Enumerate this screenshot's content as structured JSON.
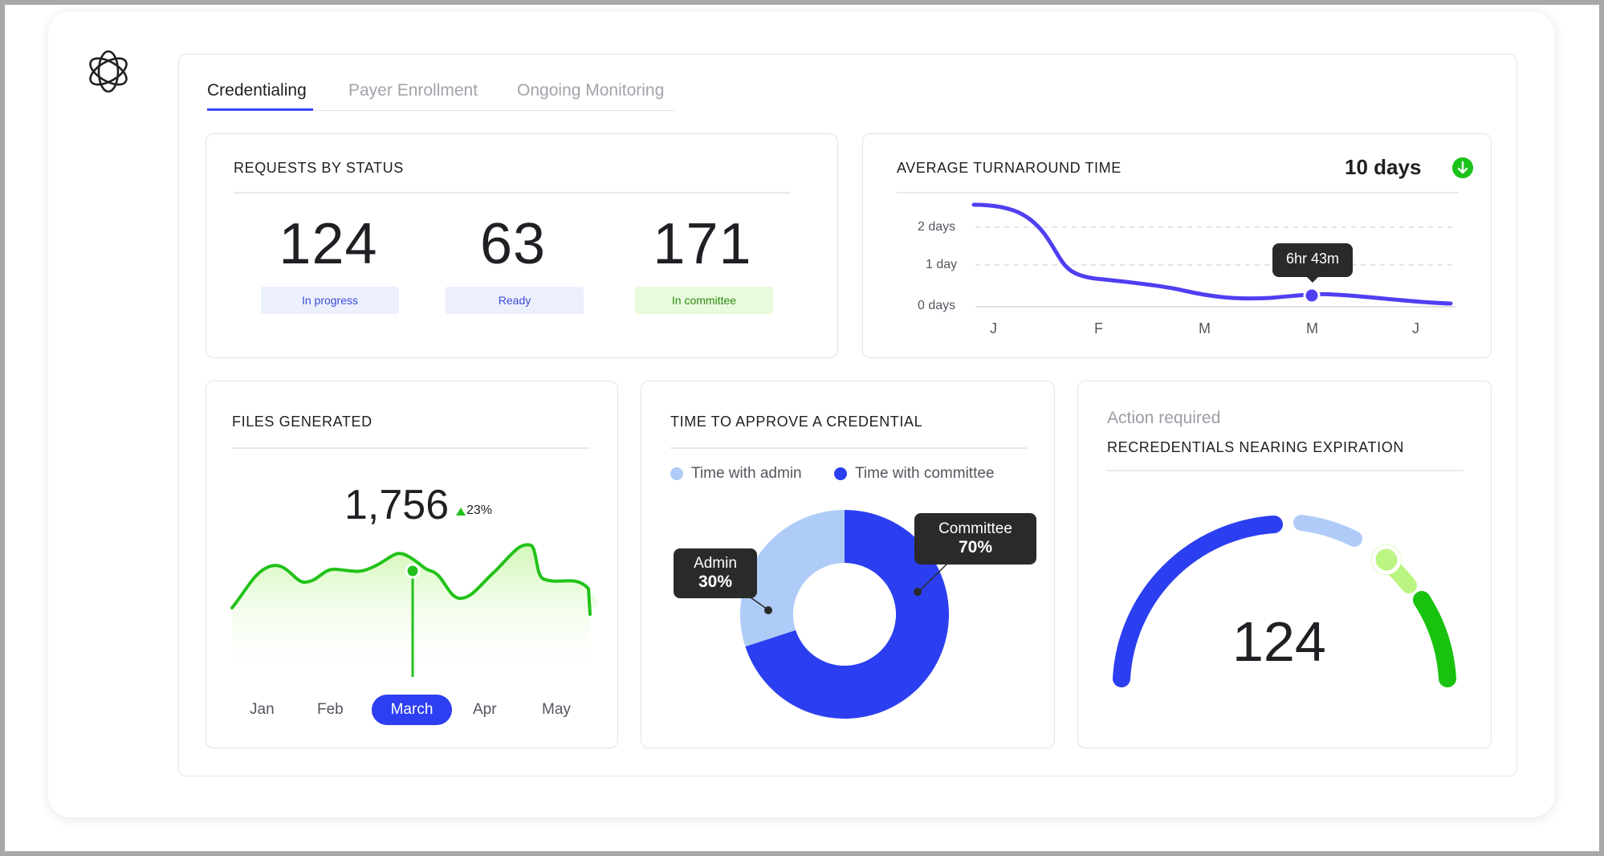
{
  "colors": {
    "accent": "#3b46f1",
    "donut_committee": "#2b3ff0",
    "donut_admin": "#afcbf8",
    "line_purple": "#4f3ff1",
    "green": "#22c21a",
    "gauge_blue": "#2b3ff0",
    "gauge_light_blue": "#b0cbf8",
    "gauge_lime": "#b9f580",
    "gauge_green": "#18c20f"
  },
  "tabs": [
    {
      "label": "Credentialing",
      "active": true
    },
    {
      "label": "Payer Enrollment",
      "active": false
    },
    {
      "label": "Ongoing Monitoring",
      "active": false
    }
  ],
  "requests": {
    "title": "REQUESTS BY STATUS",
    "items": [
      {
        "value": "124",
        "label": "In progress"
      },
      {
        "value": "63",
        "label": "Ready"
      },
      {
        "value": "171",
        "label": "In committee"
      }
    ]
  },
  "turnaround": {
    "title": "AVERAGE TURNAROUND TIME",
    "value": "10 days",
    "trend_icon": "arrow-down-icon",
    "y_labels": [
      "2 days",
      "1 day",
      "0 days"
    ],
    "x_labels": [
      "J",
      "F",
      "M",
      "M",
      "J"
    ],
    "tooltip": "6hr 43m"
  },
  "files": {
    "title": "FILES GENERATED",
    "value": "1,756",
    "delta": "23%",
    "trend_icon": "triangle-up-icon",
    "months": [
      "Jan",
      "Feb",
      "March",
      "Apr",
      "May"
    ],
    "selected_month": "March"
  },
  "approve": {
    "title": "TIME TO APPROVE A CREDENTIAL",
    "legend": [
      {
        "name": "Time with admin",
        "color": "#afcbf8"
      },
      {
        "name": "Time with committee",
        "color": "#2b3ff0"
      }
    ],
    "admin_label": "Admin",
    "admin_pct": "30%",
    "committee_label": "Committee",
    "committee_pct": "70%",
    "admin_share": 30,
    "committee_share": 70
  },
  "recred": {
    "subtitle": "Action required",
    "title": "RECREDENTIALS NEARING EXPIRATION",
    "value": "124"
  }
}
